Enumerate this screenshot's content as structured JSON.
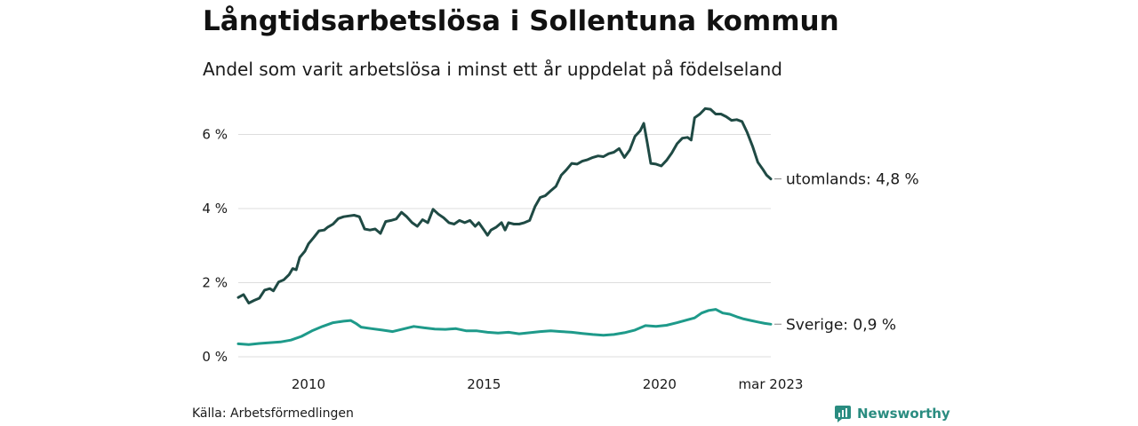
{
  "title": "Långtidsarbetslösa i Sollentuna kommun",
  "subtitle": "Andel som varit arbetslösa i minst ett år uppdelat på födelseland",
  "source": "Källa: Arbetsförmedlingen",
  "brand": "Newsworthy",
  "colors": {
    "foreign": "#1f4a44",
    "sweden": "#1e9a8a",
    "grid": "#dddddd",
    "brand": "#2a8c80"
  },
  "chart_data": {
    "type": "line",
    "x_ticks": [
      {
        "x": 2010,
        "label": "2010"
      },
      {
        "x": 2015,
        "label": "2015"
      },
      {
        "x": 2020,
        "label": "2020"
      },
      {
        "x": 2023.17,
        "label": "mar 2023"
      }
    ],
    "y_ticks": [
      {
        "y": 0,
        "label": "0 %"
      },
      {
        "y": 2,
        "label": "2 %"
      },
      {
        "y": 4,
        "label": "4 %"
      },
      {
        "y": 6,
        "label": "6 %"
      }
    ],
    "xlim": [
      2008.0,
      2023.17
    ],
    "ylim": [
      0,
      7
    ],
    "grid": true,
    "series": [
      {
        "key": "foreign",
        "end_label": "utomlands: 4,8 %",
        "points": [
          [
            2008.0,
            1.6
          ],
          [
            2008.15,
            1.68
          ],
          [
            2008.3,
            1.45
          ],
          [
            2008.45,
            1.52
          ],
          [
            2008.6,
            1.58
          ],
          [
            2008.75,
            1.8
          ],
          [
            2008.9,
            1.84
          ],
          [
            2009.0,
            1.78
          ],
          [
            2009.15,
            2.02
          ],
          [
            2009.3,
            2.08
          ],
          [
            2009.45,
            2.22
          ],
          [
            2009.55,
            2.38
          ],
          [
            2009.65,
            2.35
          ],
          [
            2009.75,
            2.68
          ],
          [
            2009.9,
            2.85
          ],
          [
            2010.0,
            3.05
          ],
          [
            2010.15,
            3.22
          ],
          [
            2010.3,
            3.4
          ],
          [
            2010.45,
            3.42
          ],
          [
            2010.55,
            3.5
          ],
          [
            2010.7,
            3.58
          ],
          [
            2010.85,
            3.73
          ],
          [
            2011.0,
            3.78
          ],
          [
            2011.15,
            3.8
          ],
          [
            2011.3,
            3.82
          ],
          [
            2011.45,
            3.78
          ],
          [
            2011.6,
            3.45
          ],
          [
            2011.75,
            3.42
          ],
          [
            2011.9,
            3.45
          ],
          [
            2012.05,
            3.33
          ],
          [
            2012.2,
            3.65
          ],
          [
            2012.35,
            3.68
          ],
          [
            2012.5,
            3.72
          ],
          [
            2012.65,
            3.9
          ],
          [
            2012.8,
            3.78
          ],
          [
            2012.95,
            3.62
          ],
          [
            2013.1,
            3.52
          ],
          [
            2013.25,
            3.7
          ],
          [
            2013.4,
            3.62
          ],
          [
            2013.55,
            3.98
          ],
          [
            2013.7,
            3.85
          ],
          [
            2013.85,
            3.75
          ],
          [
            2014.0,
            3.62
          ],
          [
            2014.15,
            3.58
          ],
          [
            2014.3,
            3.68
          ],
          [
            2014.45,
            3.62
          ],
          [
            2014.6,
            3.68
          ],
          [
            2014.75,
            3.52
          ],
          [
            2014.85,
            3.62
          ],
          [
            2015.0,
            3.42
          ],
          [
            2015.1,
            3.28
          ],
          [
            2015.2,
            3.42
          ],
          [
            2015.35,
            3.5
          ],
          [
            2015.5,
            3.62
          ],
          [
            2015.6,
            3.42
          ],
          [
            2015.7,
            3.62
          ],
          [
            2015.85,
            3.58
          ],
          [
            2016.0,
            3.58
          ],
          [
            2016.15,
            3.62
          ],
          [
            2016.3,
            3.68
          ],
          [
            2016.45,
            4.05
          ],
          [
            2016.6,
            4.3
          ],
          [
            2016.75,
            4.35
          ],
          [
            2016.9,
            4.48
          ],
          [
            2017.05,
            4.6
          ],
          [
            2017.2,
            4.9
          ],
          [
            2017.35,
            5.05
          ],
          [
            2017.5,
            5.22
          ],
          [
            2017.65,
            5.2
          ],
          [
            2017.8,
            5.28
          ],
          [
            2017.95,
            5.32
          ],
          [
            2018.1,
            5.38
          ],
          [
            2018.25,
            5.42
          ],
          [
            2018.4,
            5.4
          ],
          [
            2018.55,
            5.48
          ],
          [
            2018.7,
            5.52
          ],
          [
            2018.85,
            5.62
          ],
          [
            2019.0,
            5.38
          ],
          [
            2019.15,
            5.58
          ],
          [
            2019.3,
            5.95
          ],
          [
            2019.45,
            6.1
          ],
          [
            2019.55,
            6.3
          ],
          [
            2019.65,
            5.78
          ],
          [
            2019.75,
            5.22
          ],
          [
            2019.9,
            5.2
          ],
          [
            2020.05,
            5.15
          ],
          [
            2020.2,
            5.3
          ],
          [
            2020.35,
            5.5
          ],
          [
            2020.5,
            5.75
          ],
          [
            2020.65,
            5.9
          ],
          [
            2020.8,
            5.92
          ],
          [
            2020.9,
            5.85
          ],
          [
            2021.0,
            6.45
          ],
          [
            2021.15,
            6.55
          ],
          [
            2021.3,
            6.7
          ],
          [
            2021.45,
            6.68
          ],
          [
            2021.6,
            6.55
          ],
          [
            2021.75,
            6.55
          ],
          [
            2021.9,
            6.48
          ],
          [
            2022.05,
            6.38
          ],
          [
            2022.2,
            6.4
          ],
          [
            2022.35,
            6.35
          ],
          [
            2022.5,
            6.05
          ],
          [
            2022.65,
            5.68
          ],
          [
            2022.8,
            5.25
          ],
          [
            2022.95,
            5.05
          ],
          [
            2023.05,
            4.9
          ],
          [
            2023.17,
            4.8
          ]
        ]
      },
      {
        "key": "sweden",
        "end_label": "Sverige: 0,9 %",
        "points": [
          [
            2008.0,
            0.35
          ],
          [
            2008.3,
            0.33
          ],
          [
            2008.6,
            0.36
          ],
          [
            2008.9,
            0.38
          ],
          [
            2009.2,
            0.4
          ],
          [
            2009.5,
            0.45
          ],
          [
            2009.8,
            0.55
          ],
          [
            2010.1,
            0.7
          ],
          [
            2010.4,
            0.82
          ],
          [
            2010.7,
            0.92
          ],
          [
            2011.0,
            0.96
          ],
          [
            2011.2,
            0.98
          ],
          [
            2011.35,
            0.9
          ],
          [
            2011.5,
            0.8
          ],
          [
            2011.8,
            0.76
          ],
          [
            2012.1,
            0.72
          ],
          [
            2012.4,
            0.68
          ],
          [
            2012.7,
            0.75
          ],
          [
            2013.0,
            0.82
          ],
          [
            2013.3,
            0.78
          ],
          [
            2013.6,
            0.75
          ],
          [
            2013.9,
            0.74
          ],
          [
            2014.2,
            0.76
          ],
          [
            2014.5,
            0.7
          ],
          [
            2014.8,
            0.7
          ],
          [
            2015.1,
            0.66
          ],
          [
            2015.4,
            0.64
          ],
          [
            2015.7,
            0.66
          ],
          [
            2016.0,
            0.62
          ],
          [
            2016.3,
            0.65
          ],
          [
            2016.6,
            0.68
          ],
          [
            2016.9,
            0.7
          ],
          [
            2017.2,
            0.68
          ],
          [
            2017.5,
            0.66
          ],
          [
            2017.8,
            0.63
          ],
          [
            2018.1,
            0.6
          ],
          [
            2018.4,
            0.58
          ],
          [
            2018.7,
            0.6
          ],
          [
            2019.0,
            0.65
          ],
          [
            2019.3,
            0.72
          ],
          [
            2019.6,
            0.84
          ],
          [
            2019.9,
            0.82
          ],
          [
            2020.2,
            0.85
          ],
          [
            2020.5,
            0.92
          ],
          [
            2020.8,
            1.0
          ],
          [
            2021.0,
            1.05
          ],
          [
            2021.2,
            1.18
          ],
          [
            2021.4,
            1.25
          ],
          [
            2021.6,
            1.28
          ],
          [
            2021.8,
            1.18
          ],
          [
            2022.0,
            1.15
          ],
          [
            2022.2,
            1.08
          ],
          [
            2022.4,
            1.02
          ],
          [
            2022.6,
            0.98
          ],
          [
            2022.8,
            0.94
          ],
          [
            2023.0,
            0.9
          ],
          [
            2023.17,
            0.88
          ]
        ]
      }
    ]
  }
}
